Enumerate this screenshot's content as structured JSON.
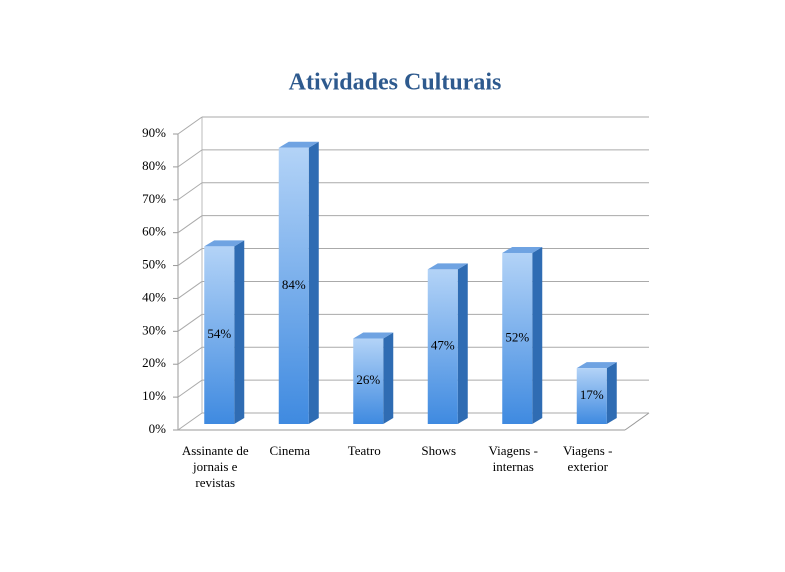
{
  "chart_data": {
    "type": "bar3d",
    "title": "Atividades Culturais",
    "categories": [
      "Assinante de jornais e revistas",
      "Cinema",
      "Teatro",
      "Shows",
      "Viagens - internas",
      "Viagens - exterior"
    ],
    "values": [
      54,
      84,
      26,
      47,
      52,
      17
    ],
    "value_labels": [
      "54%",
      "84%",
      "26%",
      "47%",
      "52%",
      "17%"
    ],
    "color": "#4a90e2",
    "ylim": [
      0,
      90
    ],
    "yticks": [
      {
        "value": 0,
        "label": "0%"
      },
      {
        "value": 10,
        "label": "10%"
      },
      {
        "value": 20,
        "label": "20%"
      },
      {
        "value": 30,
        "label": "30%"
      },
      {
        "value": 40,
        "label": "40%"
      },
      {
        "value": 50,
        "label": "50%"
      },
      {
        "value": 60,
        "label": "60%"
      },
      {
        "value": 70,
        "label": "70%"
      },
      {
        "value": 80,
        "label": "80%"
      },
      {
        "value": 90,
        "label": "90%"
      }
    ],
    "grid": true
  }
}
